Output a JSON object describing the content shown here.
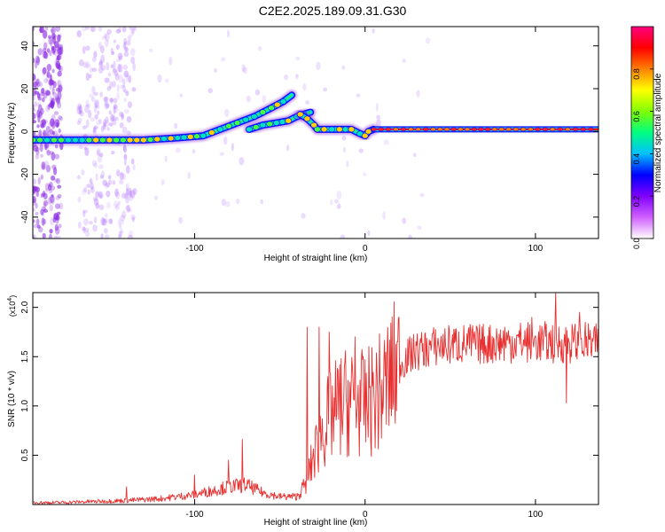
{
  "title": "C2E2.2025.189.09.31.G30",
  "chart_data": [
    {
      "type": "heatmap",
      "xlabel": "Height of straight line (km)",
      "ylabel": "Frequency (Hz)",
      "xlim": [
        -195,
        137
      ],
      "ylim": [
        -50,
        49
      ],
      "xticks": [
        -100,
        0,
        100
      ],
      "yticks": [
        -40,
        -20,
        0,
        20,
        40
      ],
      "colorbar": {
        "label": "Normalized spectral amplitude",
        "range": [
          0,
          1
        ],
        "ticks": [
          "0.0",
          "0.2",
          "0.4",
          "0.6",
          "0.8"
        ],
        "colors": [
          "#ffffff",
          "#d060ff",
          "#8000ff",
          "#0000ff",
          "#00c0ff",
          "#00ff80",
          "#80ff00",
          "#ffff00",
          "#ff8000",
          "#ff0000",
          "#ff0080"
        ]
      },
      "ridges": [
        {
          "name": "lower branch",
          "points": [
            [
              -195,
              -4
            ],
            [
              -170,
              -4
            ],
            [
              -150,
              -4
            ],
            [
              -130,
              -4
            ],
            [
              -110,
              -3
            ],
            [
              -95,
              -2
            ],
            [
              -85,
              1
            ],
            [
              -75,
              4
            ],
            [
              -65,
              7
            ],
            [
              -55,
              11
            ],
            [
              -48,
              14
            ],
            [
              -43,
              17
            ]
          ]
        },
        {
          "name": "upper branch",
          "points": [
            [
              -68,
              1
            ],
            [
              -60,
              3
            ],
            [
              -52,
              4
            ],
            [
              -45,
              5
            ],
            [
              -40,
              7
            ],
            [
              -36,
              8
            ],
            [
              -32,
              9
            ]
          ]
        },
        {
          "name": "return",
          "points": [
            [
              -38,
              8
            ],
            [
              -34,
              6
            ],
            [
              -30,
              3
            ],
            [
              -28,
              1
            ],
            [
              -24,
              1
            ],
            [
              -15,
              1
            ],
            [
              -8,
              1
            ],
            [
              -3,
              -1
            ],
            [
              0,
              -2
            ],
            [
              2,
              0
            ],
            [
              5,
              1
            ]
          ]
        },
        {
          "name": "flat line",
          "points": [
            [
              5,
              1
            ],
            [
              40,
              1
            ],
            [
              80,
              1
            ],
            [
              110,
              1
            ],
            [
              137,
              1
            ]
          ]
        }
      ]
    },
    {
      "type": "line",
      "xlabel": "Height of straight line (km)",
      "ylabel": "SNR (10 * v/v)",
      "yscale_label": "(x10",
      "yscale_exp": "4",
      "color": "#e83030",
      "xlim": [
        -195,
        137
      ],
      "ylim": [
        0,
        2.15
      ],
      "xticks": [
        -100,
        0,
        100
      ],
      "yticks": [
        0.5,
        1.0,
        1.5,
        2.0
      ],
      "ytick_labels": [
        "0.5",
        "1.0",
        "1.5",
        "2.0"
      ],
      "envelope": {
        "x": [
          -195,
          -180,
          -160,
          -140,
          -120,
          -100,
          -90,
          -80,
          -70,
          -60,
          -50,
          -40,
          -35,
          -30,
          -25,
          -20,
          -15,
          -10,
          -5,
          0,
          5,
          10,
          15,
          20,
          25,
          30,
          40,
          50,
          60,
          70,
          80,
          90,
          100,
          110,
          120,
          130,
          137
        ],
        "y": [
          0.02,
          0.02,
          0.03,
          0.04,
          0.06,
          0.1,
          0.14,
          0.18,
          0.2,
          0.12,
          0.08,
          0.08,
          0.2,
          0.5,
          0.75,
          0.9,
          1.0,
          1.05,
          1.05,
          1.0,
          1.08,
          1.15,
          1.3,
          1.4,
          1.5,
          1.55,
          1.6,
          1.62,
          1.63,
          1.63,
          1.64,
          1.65,
          1.65,
          1.64,
          1.64,
          1.64,
          1.62
        ]
      },
      "spikes": [
        [
          -140,
          0.18
        ],
        [
          -100,
          0.3
        ],
        [
          -80,
          0.45
        ],
        [
          -72,
          0.66
        ],
        [
          -34,
          1.8
        ],
        [
          -27,
          1.8
        ],
        [
          -21,
          1.75
        ],
        [
          -14,
          1.48
        ],
        [
          -6,
          1.7
        ],
        [
          3,
          1.2
        ],
        [
          30,
          1.65
        ],
        [
          66,
          1.75
        ],
        [
          82,
          1.8
        ],
        [
          98,
          1.9
        ],
        [
          112,
          2.15
        ],
        [
          118,
          1.03
        ],
        [
          126,
          1.95
        ]
      ]
    }
  ]
}
